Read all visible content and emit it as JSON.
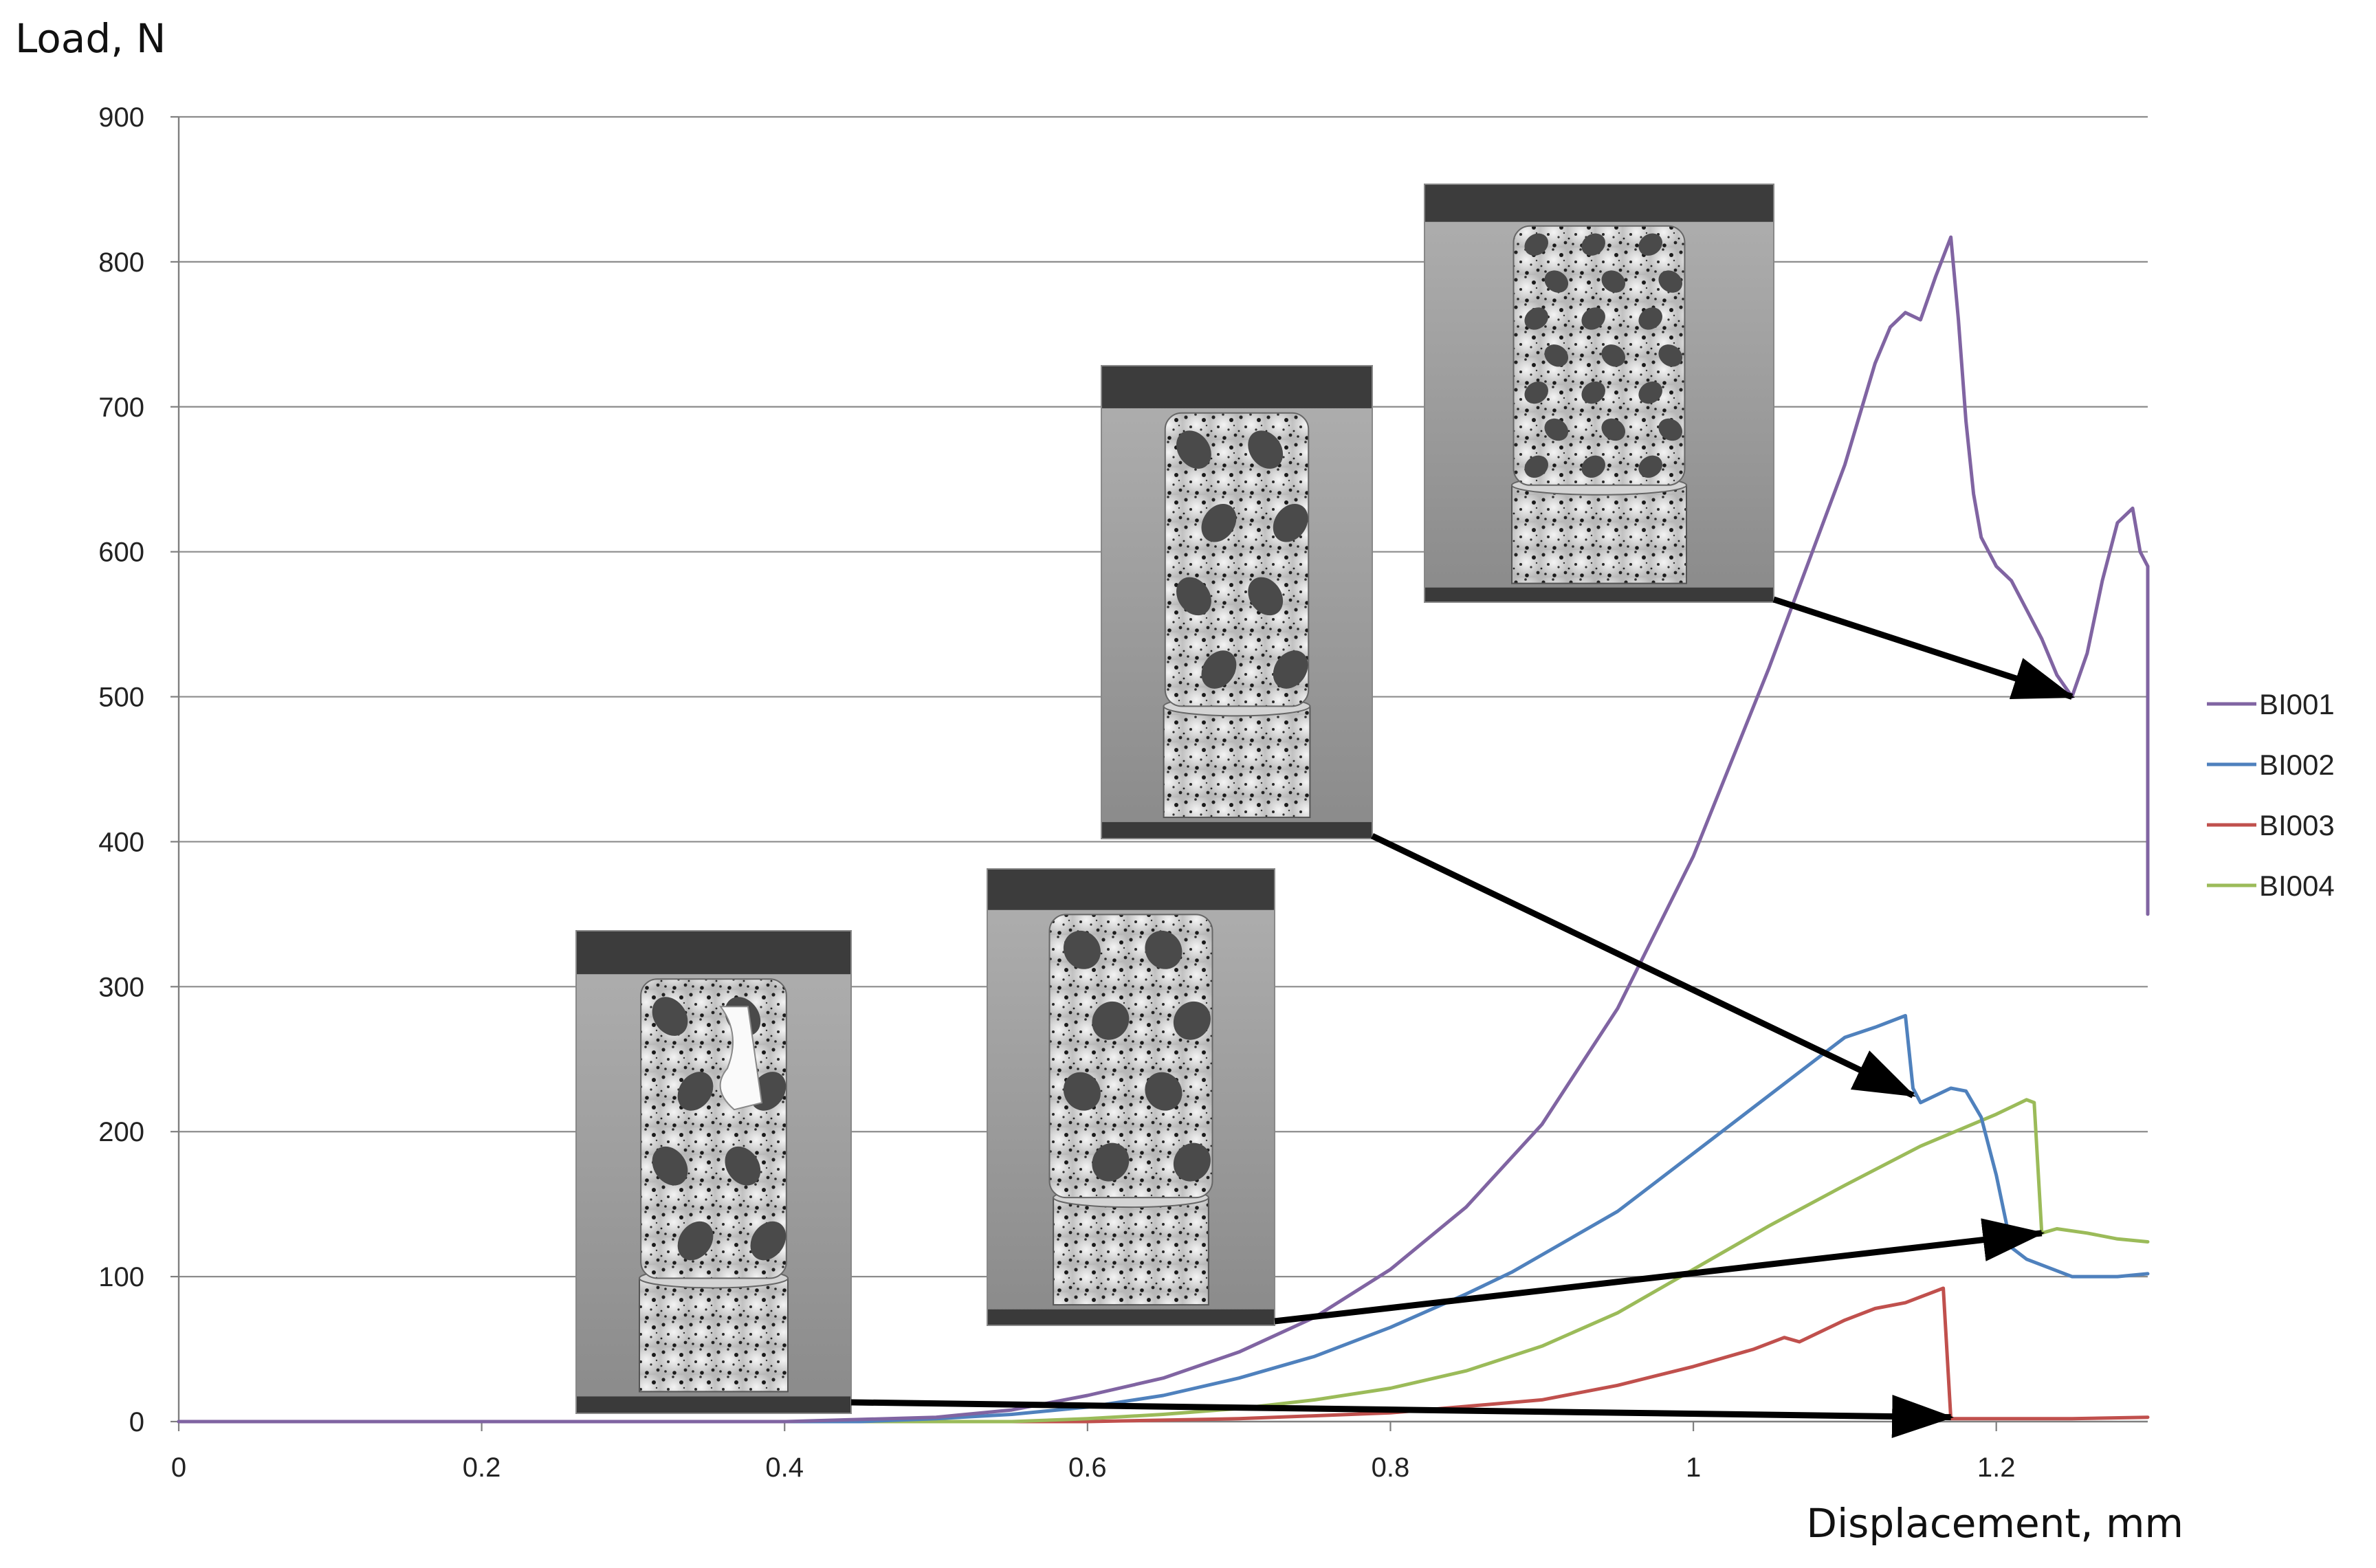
{
  "chart_data": {
    "type": "line",
    "xlabel": "Displacement, mm",
    "ylabel": "Load, N",
    "xlim": [
      0,
      1.3
    ],
    "ylim": [
      0,
      900
    ],
    "x_ticks": [
      0,
      0.2,
      0.4,
      0.6,
      0.8,
      1,
      1.2
    ],
    "x_tick_labels": [
      "0",
      "0.2",
      "0.4",
      "0.6",
      "0.8",
      "1",
      "1.2"
    ],
    "y_ticks": [
      0,
      100,
      200,
      300,
      400,
      500,
      600,
      700,
      800,
      900
    ],
    "y_tick_labels": [
      "0",
      "100",
      "200",
      "300",
      "400",
      "500",
      "600",
      "700",
      "800",
      "900"
    ],
    "grid": "horizontal",
    "legend_position": "right",
    "series": [
      {
        "name": "BI001",
        "color": "#8064a2",
        "x": [
          0,
          0.4,
          0.5,
          0.55,
          0.6,
          0.65,
          0.7,
          0.75,
          0.8,
          0.85,
          0.9,
          0.95,
          1.0,
          1.05,
          1.1,
          1.12,
          1.13,
          1.14,
          1.15,
          1.16,
          1.17,
          1.175,
          1.18,
          1.185,
          1.19,
          1.2,
          1.21,
          1.22,
          1.23,
          1.24,
          1.25,
          1.26,
          1.27,
          1.28,
          1.29,
          1.295,
          1.3,
          1.3
        ],
        "y": [
          0,
          0,
          3,
          8,
          18,
          30,
          48,
          72,
          105,
          148,
          205,
          285,
          390,
          520,
          660,
          730,
          755,
          765,
          760,
          790,
          817,
          760,
          690,
          640,
          610,
          590,
          580,
          560,
          540,
          515,
          500,
          530,
          580,
          620,
          630,
          600,
          590,
          350
        ]
      },
      {
        "name": "BI002",
        "color": "#4f81bd",
        "x": [
          0,
          0.45,
          0.5,
          0.55,
          0.6,
          0.65,
          0.7,
          0.75,
          0.8,
          0.85,
          0.88,
          0.9,
          0.95,
          1.0,
          1.05,
          1.1,
          1.12,
          1.14,
          1.145,
          1.15,
          1.16,
          1.17,
          1.18,
          1.19,
          1.2,
          1.21,
          1.22,
          1.25,
          1.28,
          1.3
        ],
        "y": [
          0,
          0,
          2,
          5,
          10,
          18,
          30,
          45,
          65,
          88,
          103,
          115,
          145,
          185,
          225,
          265,
          272,
          280,
          230,
          220,
          225,
          230,
          228,
          210,
          170,
          120,
          112,
          100,
          100,
          102
        ]
      },
      {
        "name": "BI003",
        "color": "#c0504d",
        "x": [
          0,
          0.6,
          0.7,
          0.8,
          0.9,
          0.95,
          1.0,
          1.04,
          1.06,
          1.07,
          1.1,
          1.12,
          1.14,
          1.155,
          1.165,
          1.17,
          1.2,
          1.25,
          1.3
        ],
        "y": [
          0,
          0,
          2,
          6,
          15,
          25,
          38,
          50,
          58,
          55,
          70,
          78,
          82,
          88,
          92,
          2,
          2,
          2,
          3
        ]
      },
      {
        "name": "BI004",
        "color": "#9bbb59",
        "x": [
          0,
          0.55,
          0.6,
          0.65,
          0.7,
          0.75,
          0.8,
          0.85,
          0.9,
          0.95,
          1.0,
          1.05,
          1.1,
          1.15,
          1.2,
          1.22,
          1.225,
          1.23,
          1.24,
          1.26,
          1.28,
          1.3
        ],
        "y": [
          0,
          0,
          2,
          5,
          9,
          15,
          23,
          35,
          52,
          75,
          105,
          135,
          163,
          190,
          212,
          222,
          220,
          130,
          133,
          130,
          126,
          124
        ]
      }
    ]
  },
  "legend": {
    "items": [
      {
        "label": "BI001",
        "color": "#8064a2"
      },
      {
        "label": "BI002",
        "color": "#4f81bd"
      },
      {
        "label": "BI003",
        "color": "#c0504d"
      },
      {
        "label": "BI004",
        "color": "#9bbb59"
      }
    ]
  },
  "annotations": {
    "photos": [
      {
        "name": "specimen-photo-fractured",
        "variant": "fractured"
      },
      {
        "name": "specimen-photo-crushed",
        "variant": "crushed"
      },
      {
        "name": "specimen-photo-buckled",
        "variant": "buckled"
      },
      {
        "name": "specimen-photo-compressed",
        "variant": "compressed"
      }
    ],
    "arrows": [
      {
        "name": "arrow-to-bi003-failure",
        "target_x": 1.17,
        "target_y": 3
      },
      {
        "name": "arrow-to-bi004-failure",
        "target_x": 1.23,
        "target_y": 130
      },
      {
        "name": "arrow-to-bi002-failure",
        "target_x": 1.145,
        "target_y": 225
      },
      {
        "name": "arrow-to-bi001-valley",
        "target_x": 1.25,
        "target_y": 500
      }
    ]
  }
}
